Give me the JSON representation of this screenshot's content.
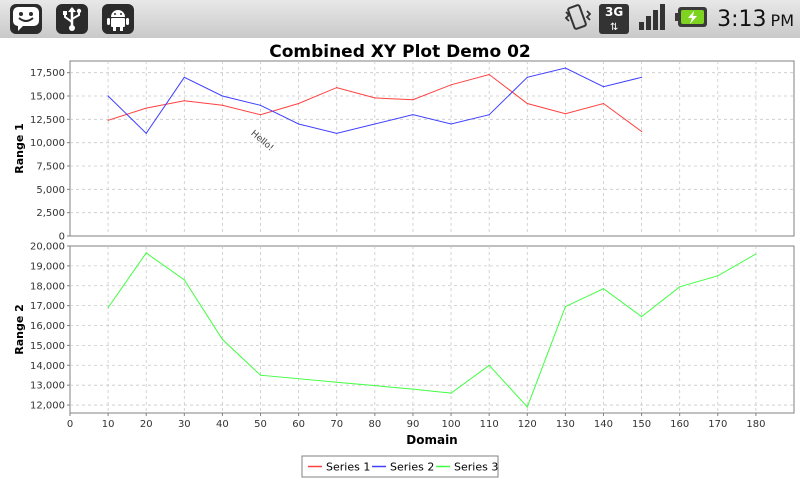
{
  "status_bar": {
    "time": "3:13",
    "ampm": "PM",
    "network": "3G",
    "icons": [
      "notification-face-icon",
      "usb-icon",
      "android-debug-icon",
      "vibrate-icon",
      "3g-data-icon",
      "signal-icon",
      "battery-charging-icon"
    ]
  },
  "chart_data": {
    "type": "line",
    "title": "Combined XY Plot Demo 02",
    "xlabel": "Domain",
    "xlim": [
      0,
      190
    ],
    "xticks": [
      0,
      10,
      20,
      30,
      40,
      50,
      60,
      70,
      80,
      90,
      100,
      110,
      120,
      130,
      140,
      150,
      160,
      170,
      180
    ],
    "grid": true,
    "legend_position": "bottom",
    "legend": [
      "Series 1",
      "Series 2",
      "Series 3"
    ],
    "subplots": [
      {
        "ylabel": "Range 1",
        "ylim": [
          0,
          18750
        ],
        "yticks": [
          0,
          2500,
          5000,
          7500,
          10000,
          12500,
          15000,
          17500
        ],
        "ytick_labels": [
          "0",
          "2,500",
          "5,000",
          "7,500",
          "10,000",
          "12,500",
          "15,000",
          "17,500"
        ],
        "annotation": {
          "text": "Hello!",
          "x": 50,
          "y": 10000
        },
        "series": [
          {
            "name": "Series 1",
            "color": "#ff4040",
            "x": [
              10,
              20,
              30,
              40,
              50,
              60,
              70,
              80,
              90,
              100,
              110,
              120,
              130,
              140,
              150
            ],
            "y": [
              12400,
              13700,
              14500,
              14000,
              13000,
              14200,
              15900,
              14800,
              14600,
              16200,
              17300,
              14200,
              13100,
              14200,
              11200
            ]
          },
          {
            "name": "Series 2",
            "color": "#4040ff",
            "x": [
              10,
              20,
              30,
              40,
              50,
              60,
              70,
              80,
              90,
              100,
              110,
              120,
              130,
              140,
              150
            ],
            "y": [
              15000,
              11000,
              17000,
              15000,
              14000,
              12000,
              11000,
              12000,
              13000,
              12000,
              13000,
              17000,
              18000,
              16000,
              17000
            ]
          }
        ]
      },
      {
        "ylabel": "Range 2",
        "ylim": [
          11600,
          20000
        ],
        "yticks": [
          12000,
          13000,
          14000,
          15000,
          16000,
          17000,
          18000,
          19000,
          20000
        ],
        "ytick_labels": [
          "12,000",
          "13,000",
          "14,000",
          "15,000",
          "16,000",
          "17,000",
          "18,000",
          "19,000",
          "20,000"
        ],
        "series": [
          {
            "name": "Series 3",
            "color": "#40ff40",
            "x": [
              10,
              20,
              30,
              40,
              50,
              70,
              90,
              100,
              110,
              120,
              130,
              140,
              150,
              160,
              170,
              180
            ],
            "y": [
              16900,
              19650,
              18300,
              15300,
              13500,
              13150,
              12800,
              12600,
              14000,
              11900,
              16950,
              17850,
              16450,
              17950,
              18500,
              19600
            ]
          }
        ]
      }
    ]
  }
}
